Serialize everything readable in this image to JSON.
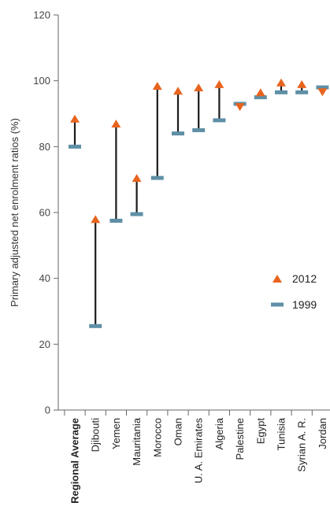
{
  "chart_data": {
    "type": "dumbbell",
    "ylabel": "Primary adjusted net enrolment ratios (%)",
    "ylim": [
      0,
      120
    ],
    "yticks": [
      0,
      20,
      40,
      60,
      80,
      100,
      120
    ],
    "grid": false,
    "legend_position": "right-middle",
    "categories": [
      "Regional Average",
      "Djibouti",
      "Yemen",
      "Mauritania",
      "Morocco",
      "Oman",
      "U. A. Emirates",
      "Algeria",
      "Palestine",
      "Egypt",
      "Tunisia",
      "Syrian A. R.",
      "Jordan"
    ],
    "bold_categories": [
      "Regional Average"
    ],
    "series": [
      {
        "name": "2012",
        "marker": "triangle",
        "color": "#E8641E",
        "values": [
          88.5,
          58,
          87,
          70.5,
          98.5,
          97,
          98,
          99,
          92,
          96.5,
          99.5,
          99,
          96.5
        ]
      },
      {
        "name": "1999",
        "marker": "dash",
        "color": "#5E8FA6",
        "values": [
          80,
          25.5,
          57.5,
          59.5,
          70.5,
          84,
          85,
          88,
          93,
          95,
          96.5,
          96.5,
          98
        ]
      }
    ],
    "line_color": "#1a1a1a"
  }
}
